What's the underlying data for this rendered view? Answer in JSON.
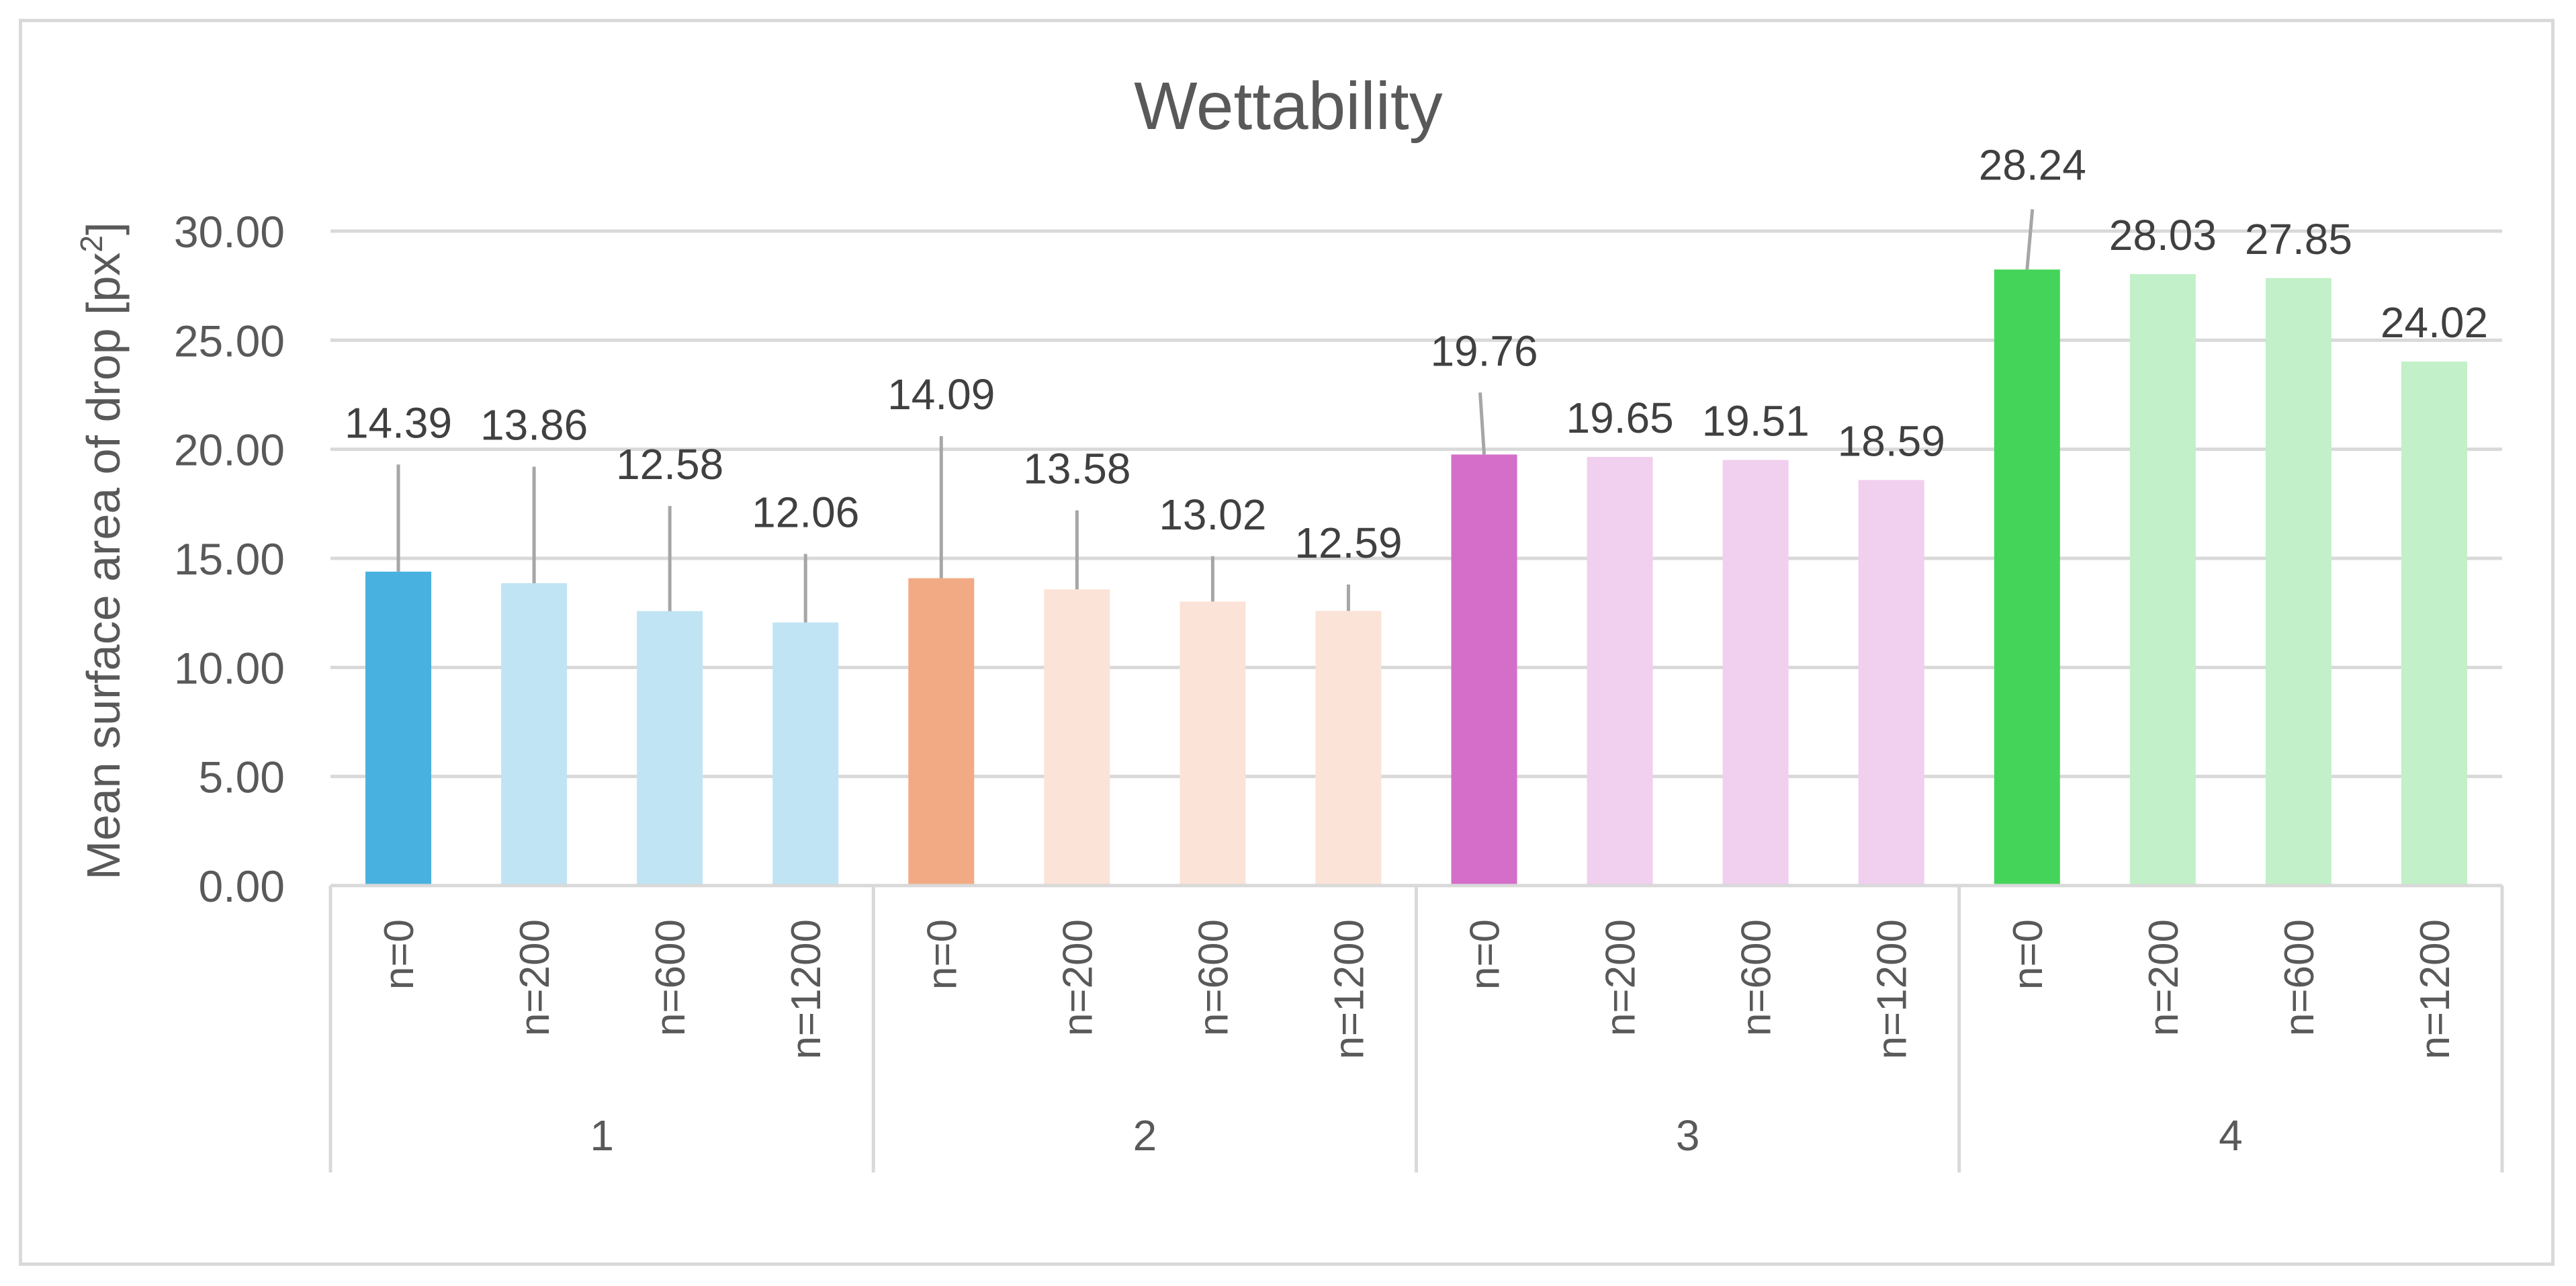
{
  "chart_data": {
    "type": "bar",
    "title": "Wettability",
    "xlabel": "",
    "ylabel": "Mean surface area of drop [px",
    "ylabel_superscript": "2",
    "ylabel_suffix": "]",
    "ylim": [
      0,
      30
    ],
    "y_ticks": [
      "0.00",
      "5.00",
      "10.00",
      "15.00",
      "20.00",
      "25.00",
      "30.00"
    ],
    "grid": true,
    "groups": [
      {
        "label": "1",
        "bars": [
          {
            "category": "n=0",
            "value": 14.39,
            "label": "14.39",
            "color": "#48b1e0"
          },
          {
            "category": "n=200",
            "value": 13.86,
            "label": "13.86",
            "color": "#c0e4f4"
          },
          {
            "category": "n=600",
            "value": 12.58,
            "label": "12.58",
            "color": "#c0e4f4"
          },
          {
            "category": "n=1200",
            "value": 12.06,
            "label": "12.06",
            "color": "#c0e4f4"
          }
        ]
      },
      {
        "label": "2",
        "bars": [
          {
            "category": "n=0",
            "value": 14.09,
            "label": "14.09",
            "color": "#f2aa84"
          },
          {
            "category": "n=200",
            "value": 13.58,
            "label": "13.58",
            "color": "#fbe3d7"
          },
          {
            "category": "n=600",
            "value": 13.02,
            "label": "13.02",
            "color": "#fbe3d7"
          },
          {
            "category": "n=1200",
            "value": 12.59,
            "label": "12.59",
            "color": "#fbe3d7"
          }
        ]
      },
      {
        "label": "3",
        "bars": [
          {
            "category": "n=0",
            "value": 19.76,
            "label": "19.76",
            "color": "#d56ec9"
          },
          {
            "category": "n=200",
            "value": 19.65,
            "label": "19.65",
            "color": "#f1cfee"
          },
          {
            "category": "n=600",
            "value": 19.51,
            "label": "19.51",
            "color": "#f1cfee"
          },
          {
            "category": "n=1200",
            "value": 18.59,
            "label": "18.59",
            "color": "#f1cfee"
          }
        ]
      },
      {
        "label": "4",
        "bars": [
          {
            "category": "n=0",
            "value": 28.24,
            "label": "28.24",
            "color": "#45d45a"
          },
          {
            "category": "n=200",
            "value": 28.03,
            "label": "28.03",
            "color": "#c2f0c8"
          },
          {
            "category": "n=600",
            "value": 27.85,
            "label": "27.85",
            "color": "#c2f0c8"
          },
          {
            "category": "n=1200",
            "value": 24.02,
            "label": "24.02",
            "color": "#c2f0c8"
          }
        ]
      }
    ],
    "error_bar_tops": [
      19.3,
      19.2,
      17.4,
      15.2,
      20.6,
      17.2,
      15.1,
      13.8,
      22.6,
      null,
      null,
      null,
      31.0,
      null,
      null,
      null
    ],
    "colors": {
      "grid": "#d9d9d9",
      "axis": "#d9d9d9",
      "text": "#595959",
      "label_text": "#404040",
      "error_bar": "#a6a6a6"
    }
  }
}
